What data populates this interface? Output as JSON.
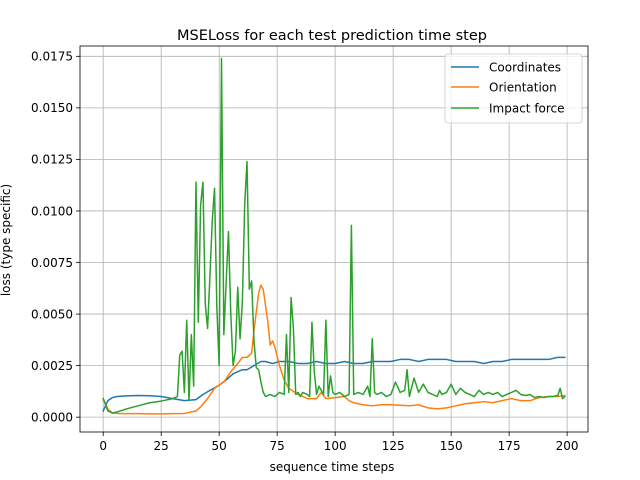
{
  "chart_data": {
    "type": "line",
    "title": "MSELoss for each test prediction time step",
    "xlabel": "sequence time steps",
    "ylabel": "loss (type specific)",
    "xlim": [
      -10,
      209
    ],
    "ylim": [
      -0.00072,
      0.018
    ],
    "xticks": [
      0,
      25,
      50,
      75,
      100,
      125,
      150,
      175,
      200
    ],
    "xtick_labels": [
      "0",
      "25",
      "50",
      "75",
      "100",
      "125",
      "150",
      "175",
      "200"
    ],
    "yticks": [
      0.0,
      0.0025,
      0.005,
      0.0075,
      0.01,
      0.0125,
      0.015,
      0.0175
    ],
    "ytick_labels": [
      "0.0000",
      "0.0025",
      "0.0050",
      "0.0075",
      "0.0100",
      "0.0125",
      "0.0150",
      "0.0175"
    ],
    "grid": true,
    "legend_position": "top-right",
    "series": [
      {
        "name": "Coordinates",
        "color": "#1f77b4",
        "x": [
          0,
          2,
          4,
          6,
          10,
          15,
          20,
          25,
          30,
          35,
          40,
          43,
          46,
          50,
          53,
          56,
          60,
          62,
          65,
          68,
          70,
          73,
          76,
          80,
          84,
          88,
          92,
          96,
          100,
          104,
          108,
          112,
          116,
          120,
          124,
          128,
          132,
          136,
          140,
          144,
          148,
          152,
          156,
          160,
          164,
          168,
          172,
          176,
          180,
          184,
          188,
          192,
          196,
          199
        ],
        "y": [
          0.0003,
          0.0008,
          0.00095,
          0.001,
          0.00103,
          0.00105,
          0.00104,
          0.001,
          0.0009,
          0.0008,
          0.00085,
          0.0011,
          0.0013,
          0.00155,
          0.0018,
          0.0021,
          0.0023,
          0.0023,
          0.0025,
          0.0027,
          0.0027,
          0.0026,
          0.0027,
          0.0027,
          0.0026,
          0.0026,
          0.0027,
          0.0026,
          0.0026,
          0.0027,
          0.0026,
          0.0026,
          0.0027,
          0.0027,
          0.0027,
          0.0028,
          0.0028,
          0.0027,
          0.0028,
          0.0028,
          0.0028,
          0.0027,
          0.0027,
          0.0027,
          0.0026,
          0.0027,
          0.0027,
          0.0028,
          0.0028,
          0.0028,
          0.0028,
          0.0028,
          0.0029,
          0.0029
        ]
      },
      {
        "name": "Orientation",
        "color": "#ff7f0e",
        "x": [
          0,
          2,
          4,
          6,
          10,
          15,
          20,
          25,
          30,
          35,
          38,
          40,
          42,
          45,
          48,
          52,
          55,
          58,
          60,
          62,
          64,
          65,
          67,
          68,
          69,
          70,
          71,
          72,
          73,
          74,
          76,
          78,
          80,
          84,
          88,
          92,
          94,
          96,
          100,
          104,
          106,
          108,
          112,
          116,
          120,
          124,
          128,
          132,
          136,
          140,
          144,
          148,
          152,
          156,
          160,
          164,
          168,
          172,
          176,
          180,
          184,
          188,
          192,
          196,
          199
        ],
        "y": [
          0.0009,
          0.0004,
          0.0002,
          0.00018,
          0.00017,
          0.00017,
          0.00016,
          0.00016,
          0.00017,
          0.00018,
          0.00025,
          0.0003,
          0.0005,
          0.0009,
          0.0014,
          0.0017,
          0.0022,
          0.0026,
          0.0029,
          0.0029,
          0.0031,
          0.0042,
          0.006,
          0.0064,
          0.0062,
          0.0054,
          0.0046,
          0.0035,
          0.0037,
          0.0034,
          0.0025,
          0.0018,
          0.0014,
          0.0011,
          0.0009,
          0.0009,
          0.0012,
          0.0009,
          0.00095,
          0.001,
          0.0008,
          0.0007,
          0.0006,
          0.00055,
          0.0006,
          0.0006,
          0.00058,
          0.00055,
          0.0006,
          0.00045,
          0.0004,
          0.00045,
          0.00055,
          0.00065,
          0.0007,
          0.00075,
          0.0007,
          0.0008,
          0.0009,
          0.0008,
          0.0008,
          0.00095,
          0.001,
          0.001,
          0.00105
        ]
      },
      {
        "name": "Impact force",
        "color": "#2ca02c",
        "x": [
          0,
          2,
          4,
          6,
          10,
          15,
          20,
          25,
          30,
          32,
          33,
          34,
          35,
          36,
          37,
          38,
          39,
          40,
          41,
          42,
          43,
          44,
          45,
          46,
          47,
          48,
          49,
          50,
          51,
          52,
          53,
          54,
          55,
          56,
          57,
          58,
          59,
          60,
          61,
          62,
          63,
          64,
          65,
          66,
          67,
          68,
          69,
          70,
          72,
          74,
          76,
          78,
          79,
          80,
          81,
          82,
          83,
          84,
          85,
          86,
          88,
          89,
          90,
          91,
          92,
          93,
          95,
          96,
          97,
          98,
          99,
          100,
          102,
          104,
          106,
          107,
          108,
          110,
          112,
          114,
          115,
          116,
          117,
          118,
          120,
          122,
          124,
          126,
          128,
          130,
          131,
          132,
          134,
          136,
          138,
          140,
          142,
          144,
          145,
          146,
          148,
          150,
          152,
          154,
          156,
          158,
          160,
          162,
          164,
          166,
          168,
          170,
          172,
          174,
          176,
          178,
          180,
          182,
          184,
          186,
          188,
          190,
          192,
          194,
          196,
          197,
          198,
          199
        ],
        "y": [
          0.0009,
          0.0003,
          0.0002,
          0.00025,
          0.0004,
          0.00055,
          0.0007,
          0.00078,
          0.0009,
          0.001,
          0.003,
          0.0032,
          0.0012,
          0.0047,
          0.0008,
          0.004,
          0.0015,
          0.0114,
          0.0046,
          0.0103,
          0.0114,
          0.0055,
          0.0043,
          0.0068,
          0.0095,
          0.0111,
          0.0053,
          0.0025,
          0.0174,
          0.004,
          0.0065,
          0.009,
          0.005,
          0.0025,
          0.0032,
          0.0063,
          0.0038,
          0.0056,
          0.0103,
          0.0124,
          0.0062,
          0.0066,
          0.0037,
          0.0024,
          0.0023,
          0.0017,
          0.0012,
          0.001,
          0.0011,
          0.001,
          0.0012,
          0.0011,
          0.004,
          0.0012,
          0.0058,
          0.0043,
          0.0011,
          0.0012,
          0.001,
          0.0012,
          0.0011,
          0.001,
          0.0046,
          0.0022,
          0.0011,
          0.0015,
          0.0011,
          0.0047,
          0.001,
          0.002,
          0.0012,
          0.0011,
          0.0012,
          0.001,
          0.0011,
          0.0093,
          0.0011,
          0.0012,
          0.0011,
          0.0015,
          0.001,
          0.0038,
          0.0012,
          0.0011,
          0.0012,
          0.001,
          0.0011,
          0.0017,
          0.0012,
          0.0013,
          0.0023,
          0.001,
          0.0019,
          0.0012,
          0.0016,
          0.0012,
          0.0011,
          0.001,
          0.0013,
          0.0011,
          0.0012,
          0.0016,
          0.0011,
          0.0014,
          0.0012,
          0.0011,
          0.001,
          0.0013,
          0.0011,
          0.0012,
          0.0011,
          0.0012,
          0.001,
          0.0011,
          0.0012,
          0.0013,
          0.0011,
          0.00105,
          0.0011,
          0.00095,
          0.001,
          0.00095,
          0.001,
          0.001,
          0.00105,
          0.0014,
          0.0009,
          0.001
        ]
      }
    ]
  }
}
